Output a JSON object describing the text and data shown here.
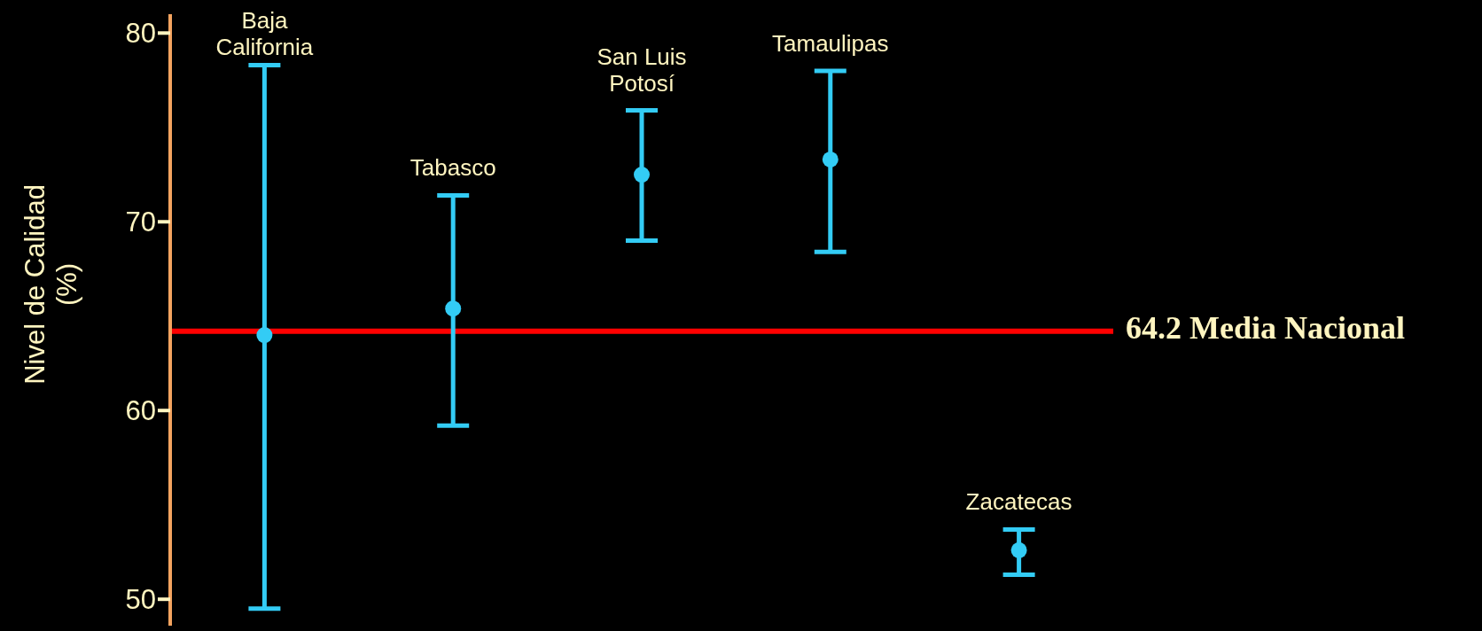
{
  "chart_data": {
    "type": "scatter",
    "ylabel": "Nivel de Calidad\n(%)",
    "categories": [
      "Baja California",
      "Tabasco",
      "San Luis Potosí",
      "Tamaulipas",
      "Zacatecas"
    ],
    "series": [
      {
        "color": "#33ccf5",
        "values": [
          64.0,
          65.4,
          72.5,
          73.3,
          52.6
        ],
        "errors": [
          [
            49.5,
            78.3
          ],
          [
            59.2,
            71.4
          ],
          [
            69.0,
            75.9
          ],
          [
            68.4,
            78.0
          ],
          [
            51.3,
            53.7
          ]
        ]
      }
    ],
    "ylim": [
      48.6,
      81
    ],
    "yticks": [
      50,
      60,
      70,
      80
    ],
    "grid": false,
    "legend": false,
    "marker": "circle",
    "tick_labels": "y",
    "ref_lines": [
      {
        "axis": "y",
        "value": 64.2,
        "label": "64.2 Media Nacional",
        "color": "#ff0000"
      }
    ]
  }
}
